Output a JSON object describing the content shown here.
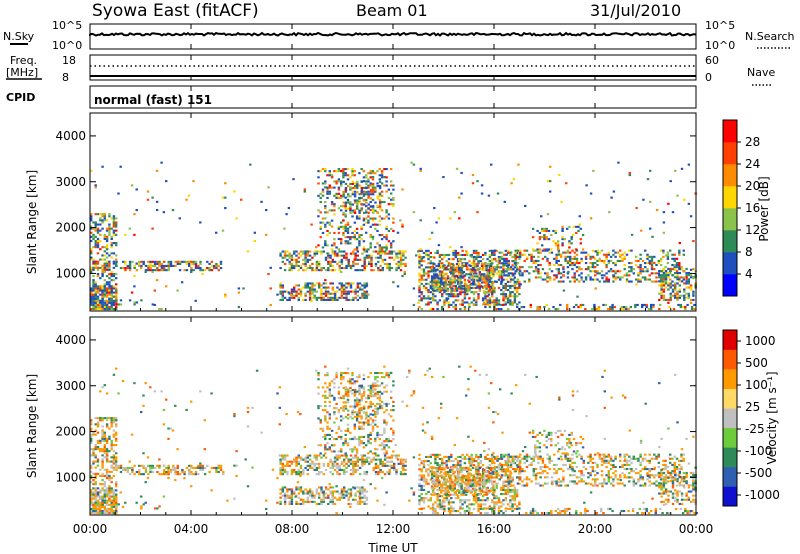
{
  "header": {
    "station": "Syowa East (fitACF)",
    "beam": "Beam 01",
    "date": "31/Jul/2010"
  },
  "top_panels": {
    "nsky": {
      "label": "N.Sky",
      "left_ticks": [
        "10^5",
        "10^0"
      ],
      "right_label": "N.Search",
      "right_ticks": [
        "10^5",
        "10^0"
      ]
    },
    "freq": {
      "label_line1": "Freq.",
      "label_line2": "[MHz]",
      "left_ticks": [
        "18",
        "8"
      ],
      "right_label": "Nave",
      "right_ticks": [
        "60",
        "0"
      ]
    },
    "cpid": {
      "label": "CPID",
      "value": "normal (fast) 151"
    }
  },
  "chart_data": [
    {
      "type": "heatmap",
      "name": "power",
      "ylabel": "Slant Range [km]",
      "xlabel": "Time UT",
      "y_ticks": [
        "1000",
        "2000",
        "3000",
        "4000"
      ],
      "y_range": [
        180,
        4500
      ],
      "x_range": [
        "00:00",
        "24:00"
      ],
      "colorbar": {
        "label": "Power [dB]",
        "ticks": [
          "4",
          "8",
          "12",
          "16",
          "20",
          "24",
          "28"
        ],
        "colors": [
          "#0000ff",
          "#1f4fbf",
          "#2e8b57",
          "#8bc34a",
          "#ffd700",
          "#ff8c00",
          "#ff4000",
          "#ff0000"
        ]
      }
    },
    {
      "type": "heatmap",
      "name": "velocity",
      "ylabel": "Slant Range [km]",
      "xlabel": "Time UT",
      "y_ticks": [
        "1000",
        "2000",
        "3000",
        "4000"
      ],
      "y_range": [
        180,
        4500
      ],
      "x_range": [
        "00:00",
        "24:00"
      ],
      "colorbar": {
        "label": "Velocity [m s⁻¹]",
        "ticks": [
          "1000",
          "500",
          "100",
          "25",
          "-25",
          "-100",
          "-500",
          "-1000"
        ],
        "colors": [
          "#1010d0",
          "#2e5fb0",
          "#2e8b57",
          "#6ecb3c",
          "#c0c0c0",
          "#ffd966",
          "#ff9900",
          "#ff5a00",
          "#e00000"
        ]
      }
    }
  ],
  "x_axis": {
    "ticks": [
      "00:00",
      "04:00",
      "08:00",
      "12:00",
      "16:00",
      "20:00",
      "00:00"
    ],
    "label": "Time UT"
  }
}
